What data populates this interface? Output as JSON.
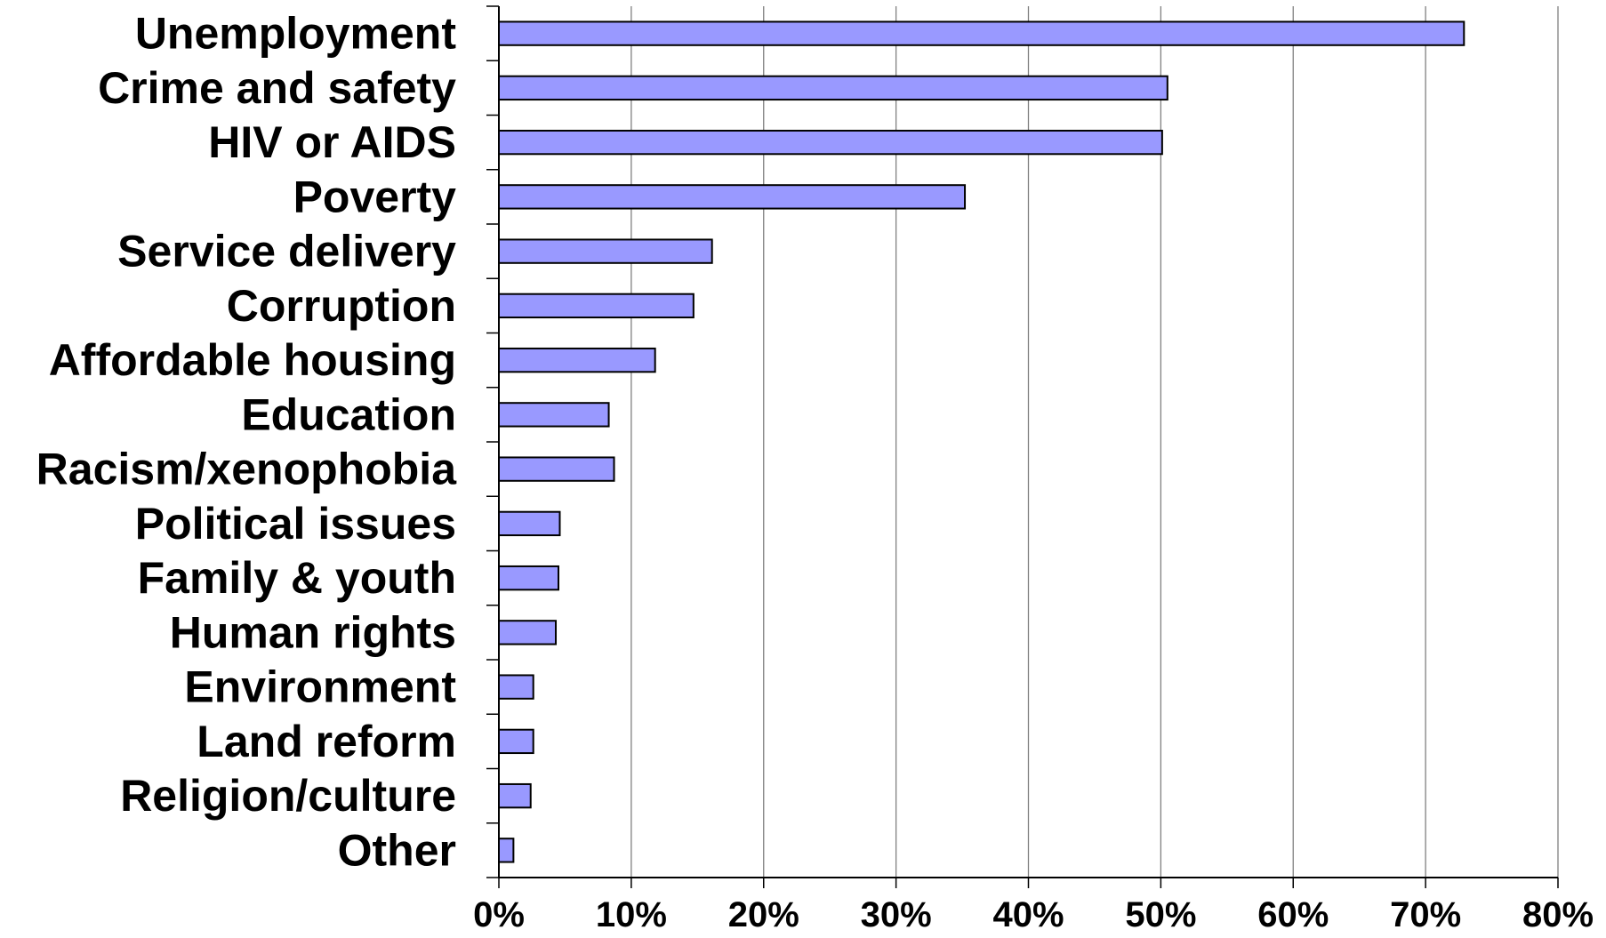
{
  "chart_data": {
    "type": "bar",
    "orientation": "horizontal",
    "categories": [
      "Unemployment",
      "Crime and safety",
      "HIV or AIDS",
      "Poverty",
      "Service delivery",
      "Corruption",
      "Affordable housing",
      "Education",
      "Racism/xenophobia",
      "Political issues",
      "Family & youth",
      "Human rights",
      "Environment",
      "Land reform",
      "Religion/culture",
      "Other"
    ],
    "values": [
      72.9,
      50.5,
      50.1,
      35.2,
      16.1,
      14.7,
      11.8,
      8.3,
      8.7,
      4.6,
      4.5,
      4.3,
      2.6,
      2.6,
      2.4,
      1.1
    ],
    "xlim": [
      0,
      80
    ],
    "xticks": [
      "0%",
      "10%",
      "20%",
      "30%",
      "40%",
      "50%",
      "60%",
      "70%",
      "80%"
    ],
    "title": "",
    "xlabel": "",
    "ylabel": "",
    "grid": "vertical",
    "legend": "none",
    "colors": {
      "bar_fill": "#9999FF",
      "bar_stroke": "#000000",
      "grid": "#808080",
      "axis": "#000000"
    }
  }
}
